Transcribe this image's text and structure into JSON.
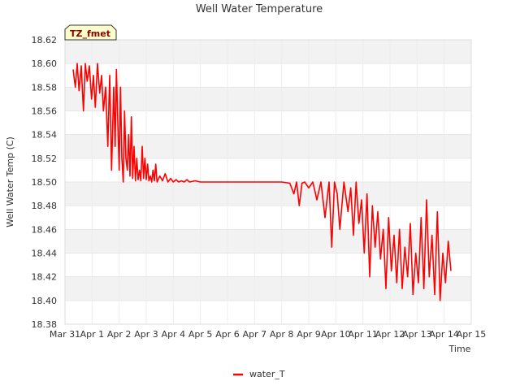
{
  "chart_data": {
    "type": "line",
    "title": "Well Water Temperature",
    "xlabel": "Time",
    "ylabel": "Well Water Temp (C)",
    "badge": "TZ_fmet",
    "ylim": [
      18.38,
      18.62
    ],
    "yticks": [
      "18.38",
      "18.40",
      "18.42",
      "18.44",
      "18.46",
      "18.48",
      "18.50",
      "18.52",
      "18.54",
      "18.56",
      "18.58",
      "18.60",
      "18.62"
    ],
    "xlim": [
      0,
      15
    ],
    "xticks": [
      "Mar 31",
      "Apr 1",
      "Apr 2",
      "Apr 3",
      "Apr 4",
      "Apr 5",
      "Apr 6",
      "Apr 7",
      "Apr 8",
      "Apr 9",
      "Apr 10",
      "Apr 11",
      "Apr 12",
      "Apr 13",
      "Apr 14",
      "Apr 15"
    ],
    "legend": "bottom",
    "series": [
      {
        "name": "water_T",
        "color": "#ff0000",
        "x": [
          0.3,
          0.38,
          0.45,
          0.52,
          0.6,
          0.68,
          0.75,
          0.82,
          0.9,
          0.98,
          1.05,
          1.12,
          1.2,
          1.28,
          1.35,
          1.42,
          1.5,
          1.58,
          1.65,
          1.72,
          1.8,
          1.85,
          1.9,
          1.95,
          2.0,
          2.05,
          2.1,
          2.15,
          2.2,
          2.25,
          2.3,
          2.35,
          2.4,
          2.45,
          2.5,
          2.55,
          2.6,
          2.65,
          2.7,
          2.75,
          2.8,
          2.85,
          2.9,
          2.95,
          3.0,
          3.05,
          3.1,
          3.15,
          3.2,
          3.25,
          3.3,
          3.35,
          3.4,
          3.5,
          3.6,
          3.7,
          3.8,
          3.9,
          4.0,
          4.1,
          4.2,
          4.3,
          4.4,
          4.5,
          4.6,
          4.8,
          5.0,
          5.5,
          6.0,
          7.0,
          8.0,
          8.3,
          8.45,
          8.55,
          8.65,
          8.75,
          8.85,
          9.0,
          9.15,
          9.3,
          9.45,
          9.6,
          9.75,
          9.85,
          9.95,
          10.05,
          10.15,
          10.3,
          10.45,
          10.55,
          10.65,
          10.75,
          10.85,
          10.95,
          11.05,
          11.15,
          11.25,
          11.35,
          11.45,
          11.55,
          11.65,
          11.75,
          11.85,
          11.95,
          12.05,
          12.15,
          12.25,
          12.35,
          12.45,
          12.55,
          12.65,
          12.75,
          12.85,
          12.95,
          13.05,
          13.15,
          13.25,
          13.35,
          13.45,
          13.55,
          13.65,
          13.75,
          13.85,
          13.95,
          14.05,
          14.15,
          14.25
        ],
        "y": [
          18.595,
          18.58,
          18.6,
          18.577,
          18.598,
          18.56,
          18.6,
          18.585,
          18.598,
          18.57,
          18.59,
          18.563,
          18.6,
          18.575,
          18.59,
          18.56,
          18.58,
          18.53,
          18.59,
          18.51,
          18.58,
          18.53,
          18.595,
          18.55,
          18.51,
          18.58,
          18.52,
          18.5,
          18.56,
          18.52,
          18.51,
          18.54,
          18.505,
          18.555,
          18.503,
          18.53,
          18.501,
          18.52,
          18.502,
          18.51,
          18.501,
          18.53,
          18.503,
          18.52,
          18.502,
          18.515,
          18.501,
          18.505,
          18.5,
          18.51,
          18.501,
          18.515,
          18.5,
          18.505,
          18.501,
          18.507,
          18.5,
          18.503,
          18.5,
          18.502,
          18.5,
          18.501,
          18.5,
          18.502,
          18.5,
          18.501,
          18.5,
          18.5,
          18.5,
          18.5,
          18.5,
          18.499,
          18.49,
          18.5,
          18.48,
          18.499,
          18.5,
          18.495,
          18.5,
          18.485,
          18.5,
          18.47,
          18.5,
          18.445,
          18.5,
          18.49,
          18.46,
          18.5,
          18.475,
          18.495,
          18.455,
          18.5,
          18.465,
          18.485,
          18.44,
          18.49,
          18.42,
          18.48,
          18.445,
          18.475,
          18.435,
          18.46,
          18.41,
          18.47,
          18.425,
          18.455,
          18.415,
          18.46,
          18.41,
          18.445,
          18.42,
          18.465,
          18.405,
          18.44,
          18.415,
          18.47,
          18.41,
          18.485,
          18.42,
          18.455,
          18.405,
          18.475,
          18.4,
          18.44,
          18.415,
          18.45,
          18.425
        ]
      }
    ]
  }
}
